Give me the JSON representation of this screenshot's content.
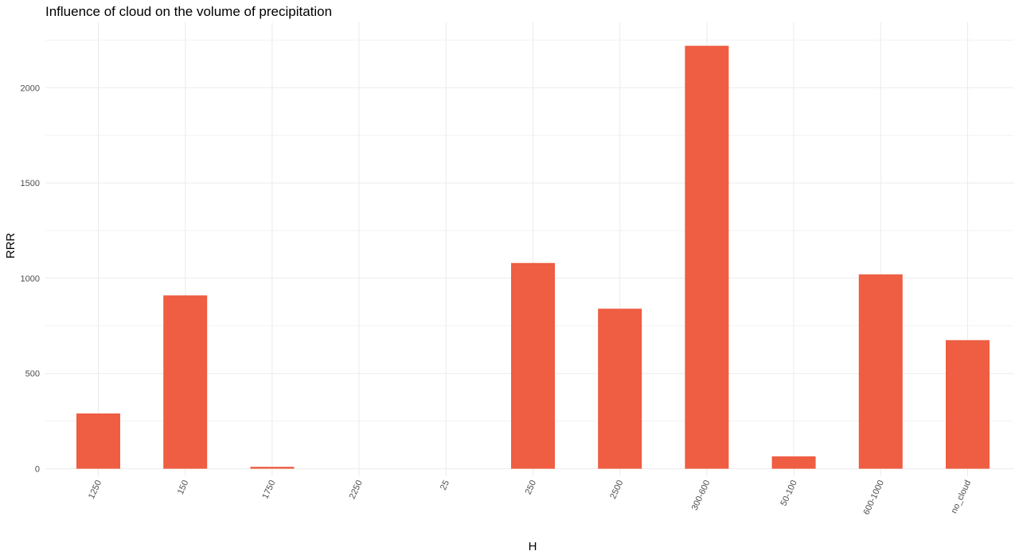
{
  "chart_data": {
    "type": "bar",
    "title": "Influence of cloud on the volume of precipitation",
    "xlabel": "H",
    "ylabel": "RRR",
    "categories": [
      "1250",
      "150",
      "1750",
      "2250",
      "25",
      "250",
      "2500",
      "300-600",
      "50-100",
      "600-1000",
      "no_cloud"
    ],
    "values": [
      290,
      910,
      10,
      0,
      0,
      1080,
      840,
      2220,
      65,
      1020,
      675
    ],
    "ylim": [
      0,
      2250
    ],
    "yticks": [
      0,
      500,
      1000,
      1500,
      2000
    ],
    "grid": true,
    "bar_color": "#EF5D42",
    "legend": "none",
    "x_tick_rotation": -65
  }
}
